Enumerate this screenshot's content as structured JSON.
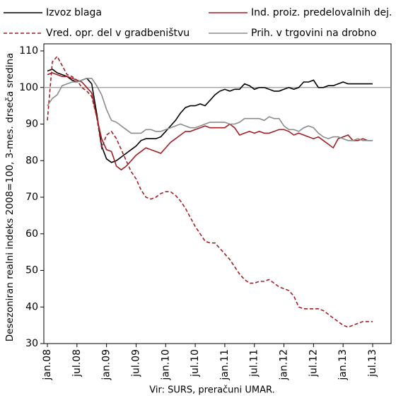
{
  "chart_data": {
    "type": "line",
    "ylabel": "Desezoniran realni indeks 2008=100, 3-mes. drseča sredina",
    "source": "Vir: SURS, preračuni UMAR.",
    "categories": [
      "jan.08",
      null,
      null,
      null,
      null,
      null,
      "jul.08",
      null,
      null,
      null,
      null,
      null,
      "jan.09",
      null,
      null,
      null,
      null,
      null,
      "jul.09",
      null,
      null,
      null,
      null,
      null,
      "jan.10",
      null,
      null,
      null,
      null,
      null,
      "jul.10",
      null,
      null,
      null,
      null,
      null,
      "jan.11",
      null,
      null,
      null,
      null,
      null,
      "jul.11",
      null,
      null,
      null,
      null,
      null,
      "jan.12",
      null,
      null,
      null,
      null,
      null,
      "jul.12",
      null,
      null,
      null,
      null,
      null,
      "jan.13",
      null,
      null,
      null,
      null,
      null,
      "jul.13"
    ],
    "series": [
      {
        "name": "Izvoz blaga",
        "color": "#000000",
        "dash": "solid",
        "values": [
          104.5,
          105,
          104,
          103.5,
          103,
          102,
          101.5,
          102,
          102.5,
          101,
          93,
          84,
          80.5,
          79.5,
          80,
          81,
          82,
          83,
          84,
          85.5,
          86,
          86,
          86,
          86.5,
          88,
          89.5,
          91,
          93,
          94.5,
          95,
          95,
          95.5,
          95,
          96.5,
          98,
          99,
          99.5,
          99,
          99.5,
          99.5,
          101,
          100.5,
          99.5,
          100,
          100,
          99.5,
          99,
          99,
          99.5,
          100,
          99.5,
          100,
          101.5,
          101.5,
          102,
          100,
          100,
          100.5,
          100.5,
          101,
          101.5,
          101,
          101,
          101,
          101,
          101,
          101
        ]
      },
      {
        "name": "Ind. proiz. predelovalnih dej.",
        "color": "#a31f24",
        "dash": "solid",
        "values": [
          103.5,
          104,
          103.5,
          103,
          103,
          102.5,
          102,
          101.5,
          100,
          98.5,
          92,
          86,
          83,
          82.5,
          78.5,
          77.5,
          78.5,
          80,
          81.5,
          82.5,
          83.5,
          83,
          82.5,
          82,
          83.5,
          85,
          86,
          87,
          88,
          88,
          88.5,
          89,
          89.5,
          89,
          89,
          89,
          89,
          90,
          89,
          87,
          87.5,
          88,
          87.5,
          88,
          87.5,
          87.5,
          88,
          88.5,
          88.5,
          88,
          87,
          87.5,
          87,
          86.5,
          86,
          86.5,
          85.5,
          84.5,
          83.5,
          86,
          86.5,
          87,
          85.5,
          85.5,
          86,
          85.5,
          85.5
        ]
      },
      {
        "name": "Vred. opr. del v gradbeništvu",
        "color": "#a31f24",
        "dash": "dashed",
        "values": [
          91,
          107,
          108.5,
          106,
          103.5,
          103,
          102,
          100,
          99,
          97.5,
          92,
          83.5,
          87,
          88,
          86,
          83,
          80,
          77,
          75,
          72,
          70,
          69.5,
          70,
          71,
          71.5,
          71.5,
          70.5,
          69,
          67,
          64.5,
          62,
          60,
          58,
          57.5,
          57.5,
          56,
          54.5,
          53,
          51,
          49,
          47.5,
          46.5,
          46.5,
          47,
          47,
          47.5,
          46.5,
          45.5,
          45,
          44.5,
          43,
          40,
          39.5,
          39.5,
          39.5,
          39.5,
          39,
          38,
          37,
          36,
          35,
          34.5,
          35,
          35.5,
          36,
          36,
          36
        ]
      },
      {
        "name": "Prih. v trgovini na drobno",
        "color": "#8c8c8c",
        "dash": "solid",
        "values": [
          95,
          97,
          98,
          100.5,
          101,
          101.5,
          101.5,
          102,
          102.5,
          102.5,
          100.5,
          98,
          94,
          91,
          90.5,
          89.5,
          88.5,
          87.5,
          87.5,
          87.5,
          88.5,
          88.5,
          88,
          88,
          88.5,
          89,
          89.5,
          90,
          89.5,
          89,
          89,
          89.5,
          90,
          90.5,
          90.5,
          90.5,
          90.5,
          90,
          90,
          90.5,
          91.5,
          91.5,
          91.5,
          91.5,
          91,
          92,
          91.5,
          91.5,
          89.5,
          88.5,
          88.5,
          88,
          89,
          89.5,
          89,
          87.5,
          86.5,
          86,
          86.5,
          86.5,
          86,
          85.5,
          85.5,
          86,
          85.5,
          85.5,
          85.5
        ]
      }
    ],
    "ylim": [
      30,
      110
    ],
    "yticks": [
      30,
      40,
      50,
      60,
      70,
      80,
      90,
      100,
      110
    ],
    "reference_line": 100,
    "grid": false
  }
}
